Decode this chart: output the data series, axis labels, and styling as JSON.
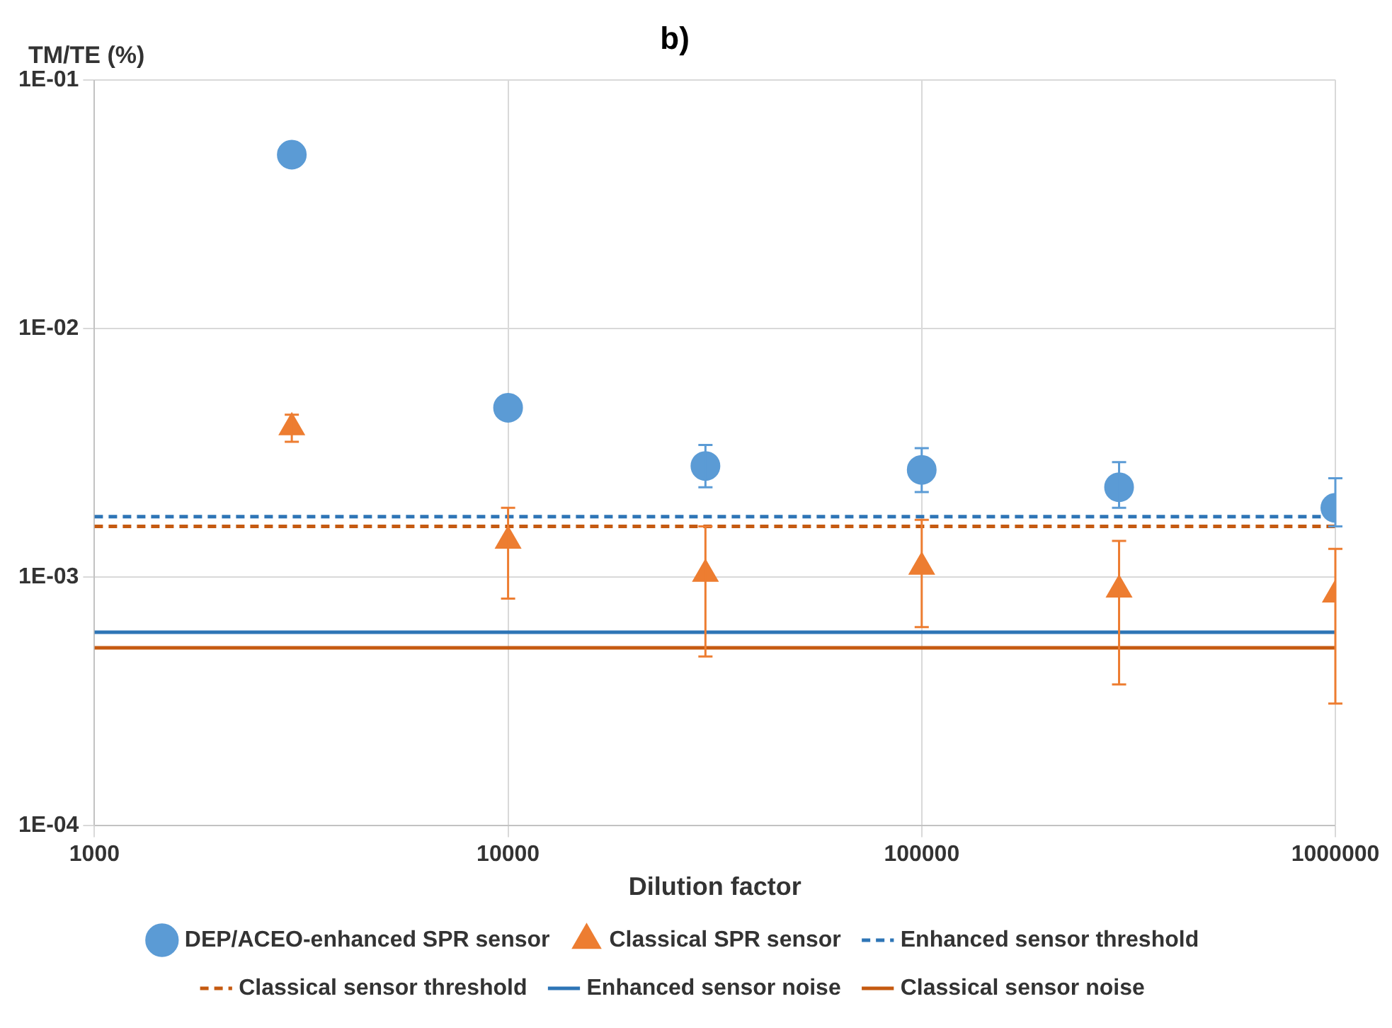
{
  "chart_data": {
    "type": "scatter",
    "title": "b)",
    "xlabel": "Dilution factor",
    "ylabel": "TM/TE (%)",
    "log": "xy",
    "grid": true,
    "legend": "bottom",
    "x": [
      3000,
      10000,
      30000,
      100000,
      300000,
      1000000
    ],
    "xlim": [
      1000,
      1000000
    ],
    "xticks": [
      1000,
      10000,
      100000,
      1000000
    ],
    "ylim": [
      0.0001,
      0.1
    ],
    "yticks": [
      {
        "value": 0.0001,
        "label": "1E-04"
      },
      {
        "value": 0.001,
        "label": "1E-03"
      },
      {
        "value": 0.01,
        "label": "1E-02"
      },
      {
        "value": 0.1,
        "label": "1E-01"
      }
    ],
    "series": [
      {
        "name": "DEP/ACEO-enhanced SPR sensor",
        "color": "#5b9bd5",
        "marker": "circle",
        "values": [
          0.05,
          0.0048,
          0.0028,
          0.0027,
          0.0023,
          0.0019
        ],
        "errors": [
          null,
          null,
          [
            0.0023,
            0.0034
          ],
          [
            0.0022,
            0.0033
          ],
          [
            0.0019,
            0.0029
          ],
          [
            0.0016,
            0.0025
          ]
        ]
      },
      {
        "name": "Classical SPR sensor",
        "color": "#ed7d31",
        "marker": "triangle",
        "values": [
          0.004,
          0.0014,
          0.00103,
          0.0011,
          0.00089,
          0.00085
        ],
        "errors": [
          [
            0.0035,
            0.0045
          ],
          [
            0.00082,
            0.0019
          ],
          [
            0.00048,
            0.0016
          ],
          [
            0.00063,
            0.0017
          ],
          [
            0.00037,
            0.0014
          ],
          [
            0.00031,
            0.0013
          ]
        ]
      }
    ],
    "ref_lines": [
      {
        "axis": "y",
        "value": 0.00175,
        "label": "Enhanced sensor threshold",
        "color": "#2e75b6",
        "line_style": "dashed"
      },
      {
        "axis": "y",
        "value": 0.0016,
        "label": "Classical sensor threshold",
        "color": "#c55a11",
        "line_style": "dashed"
      },
      {
        "axis": "y",
        "value": 0.0006,
        "label": "Enhanced sensor noise",
        "color": "#2e75b6",
        "line_style": "solid"
      },
      {
        "axis": "y",
        "value": 0.00052,
        "label": "Classical sensor noise",
        "color": "#c55a11",
        "line_style": "solid"
      }
    ]
  }
}
